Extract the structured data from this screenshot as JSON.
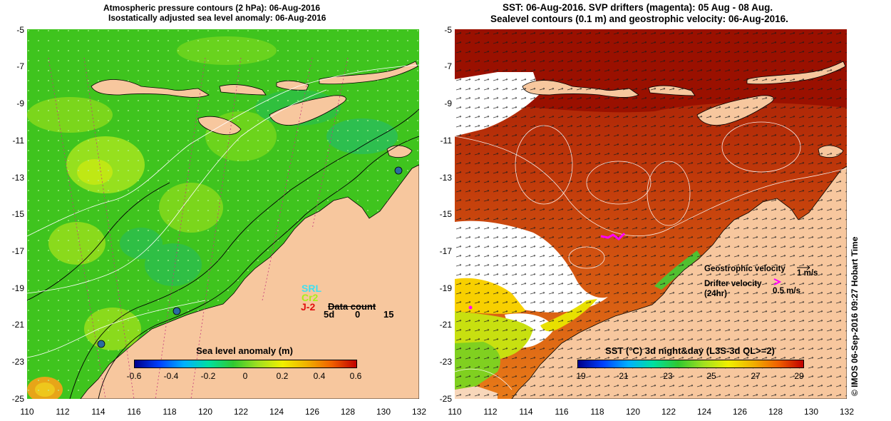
{
  "left_map": {
    "title_line1": "Atmospheric pressure contours (2 hPa): 06-Aug-2016",
    "title_line2": "Isostatically adjusted sea level anomaly: 06-Aug-2016",
    "x_ticks": [
      "110",
      "112",
      "114",
      "116",
      "118",
      "120",
      "122",
      "124",
      "126",
      "128",
      "130",
      "132"
    ],
    "y_ticks": [
      "-5",
      "-7",
      "-9",
      "-11",
      "-13",
      "-15",
      "-17",
      "-19",
      "-21",
      "-23",
      "-25"
    ],
    "legend": {
      "srl": "SRL",
      "cr2": "Cr2",
      "j2": "J-2",
      "data_count_label": "Data count",
      "count_5d": "5d",
      "count_0": "0",
      "count_15": "15"
    },
    "colorbar": {
      "title": "Sea level anomaly (m)",
      "ticks": [
        "-0.6",
        "-0.4",
        "-0.2",
        "0",
        "0.2",
        "0.4",
        "0.6"
      ]
    },
    "colors": {
      "sea": "#3fc41e",
      "land": "#f7c79e"
    }
  },
  "right_map": {
    "title_line1": "SST: 06-Aug-2016. SVP drifters (magenta): 05 Aug - 08 Aug.",
    "title_line2": "Sealevel contours (0.1 m) and geostrophic velocity: 06-Aug-2016.",
    "x_ticks": [
      "110",
      "112",
      "114",
      "116",
      "118",
      "120",
      "122",
      "124",
      "126",
      "128",
      "130",
      "132"
    ],
    "y_ticks": [
      "-5",
      "-7",
      "-9",
      "-11",
      "-13",
      "-15",
      "-17",
      "-19",
      "-21",
      "-23",
      "-25"
    ],
    "geostrophic_label": "Geostrophic velocity",
    "geostrophic_unit": "1 m/s",
    "drifter_label": "Drifter velocity",
    "drifter_period": "(24hr)",
    "drifter_unit": "0.5 m/s",
    "colorbar": {
      "title": "SST (°C) 3d night&day (L3S-3d QL>=2)",
      "ticks": [
        "19",
        "21",
        "23",
        "25",
        "27",
        "29"
      ]
    },
    "colors": {
      "warm": "#c0390a",
      "hot": "#a01400",
      "land": "#f7c79e",
      "drifter": "#ff00ff"
    }
  },
  "credit": "© IMOS 06-Sep-2016 09:27 Hobart Time"
}
